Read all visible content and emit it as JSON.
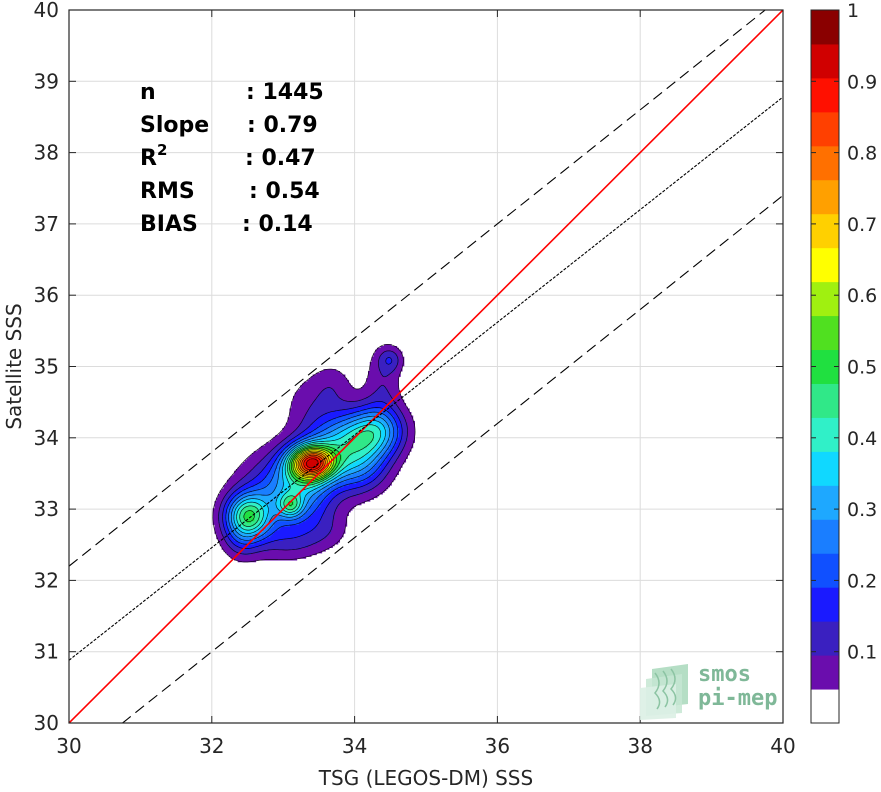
{
  "chart_data": {
    "type": "contour-scatter",
    "xlabel": "TSG (LEGOS-DM) SSS",
    "ylabel": "Satellite SSS",
    "xlim": [
      30,
      40
    ],
    "ylim": [
      30,
      40
    ],
    "xticks": [
      "30",
      "32",
      "34",
      "36",
      "38",
      "40"
    ],
    "yticks": [
      "30",
      "31",
      "32",
      "33",
      "34",
      "35",
      "36",
      "37",
      "38",
      "39",
      "40"
    ],
    "grid": true,
    "stats": [
      {
        "label": "n",
        "sep": ":",
        "value": "1445"
      },
      {
        "label": "Slope",
        "sep": ":",
        "value": "0.79"
      },
      {
        "label": "R",
        "sup": "2",
        "sep": ":",
        "value": "0.47"
      },
      {
        "label": "RMS",
        "sep": ":",
        "value": "0.54"
      },
      {
        "label": "BIAS",
        "sep": ":",
        "value": "0.14"
      }
    ],
    "lines": [
      {
        "kind": "identity",
        "color": "#ff0000",
        "style": "solid",
        "intercept": 0,
        "slope": 1
      },
      {
        "kind": "regression",
        "color": "#000000",
        "style": "dotted",
        "x": [
          30,
          40
        ],
        "y": [
          30.88,
          38.78
        ]
      },
      {
        "kind": "upper-bound",
        "color": "#000000",
        "style": "dashed",
        "x": [
          30,
          40
        ],
        "y": [
          32.2,
          40.2
        ]
      },
      {
        "kind": "lower-bound",
        "color": "#000000",
        "style": "dashed",
        "x": [
          30,
          40
        ],
        "y": [
          29.4,
          37.4
        ]
      }
    ],
    "density_peaks": [
      {
        "x": 33.4,
        "y": 33.65,
        "sx": 0.22,
        "sy": 0.17,
        "amp": 1.0
      },
      {
        "x": 33.2,
        "y": 33.3,
        "sx": 0.35,
        "sy": 0.35,
        "amp": 0.45
      },
      {
        "x": 33.8,
        "y": 33.95,
        "sx": 0.35,
        "sy": 0.28,
        "amp": 0.35
      },
      {
        "x": 33.1,
        "y": 33.05,
        "sx": 0.12,
        "sy": 0.12,
        "amp": 0.3
      },
      {
        "x": 32.5,
        "y": 32.9,
        "sx": 0.22,
        "sy": 0.22,
        "amp": 0.55
      },
      {
        "x": 32.6,
        "y": 33.05,
        "sx": 0.3,
        "sy": 0.45,
        "amp": 0.12
      },
      {
        "x": 34.3,
        "y": 34.1,
        "sx": 0.28,
        "sy": 0.25,
        "amp": 0.42
      },
      {
        "x": 34.05,
        "y": 33.6,
        "sx": 0.3,
        "sy": 0.28,
        "amp": 0.28
      },
      {
        "x": 34.4,
        "y": 34.8,
        "sx": 0.18,
        "sy": 0.35,
        "amp": 0.12
      },
      {
        "x": 34.5,
        "y": 35.1,
        "sx": 0.12,
        "sy": 0.12,
        "amp": 0.14
      },
      {
        "x": 33.4,
        "y": 34.5,
        "sx": 0.3,
        "sy": 0.3,
        "amp": 0.09
      },
      {
        "x": 33.7,
        "y": 34.75,
        "sx": 0.2,
        "sy": 0.22,
        "amp": 0.08
      },
      {
        "x": 33.1,
        "y": 32.55,
        "sx": 0.3,
        "sy": 0.2,
        "amp": 0.12
      },
      {
        "x": 32.4,
        "y": 32.55,
        "sx": 0.18,
        "sy": 0.2,
        "amp": 0.1
      },
      {
        "x": 33.6,
        "y": 32.7,
        "sx": 0.25,
        "sy": 0.2,
        "amp": 0.08
      }
    ],
    "contour_levels": [
      0.05,
      0.1,
      0.15,
      0.2,
      0.25,
      0.3,
      0.35,
      0.4,
      0.45,
      0.5,
      0.55,
      0.6,
      0.65,
      0.7,
      0.75,
      0.8,
      0.85,
      0.9,
      0.95
    ],
    "colorbar": {
      "range": [
        0,
        1
      ],
      "ticks": [
        "0.1",
        "0.2",
        "0.3",
        "0.4",
        "0.5",
        "0.6",
        "0.7",
        "0.8",
        "0.9",
        "1"
      ],
      "colors": [
        "#ffffff",
        "#6a0dad",
        "#3a20c0",
        "#1a1aff",
        "#1050ff",
        "#1a7eff",
        "#1ea8ff",
        "#10d8ff",
        "#30f0c8",
        "#30e888",
        "#20e040",
        "#50e020",
        "#a0f010",
        "#ffff00",
        "#ffd000",
        "#ffa000",
        "#ff7000",
        "#ff4000",
        "#ff1000",
        "#d00000",
        "#8a0000"
      ]
    }
  },
  "watermark": {
    "line1": "smos",
    "line2": "pi-mep",
    "color": "#7fb898"
  }
}
